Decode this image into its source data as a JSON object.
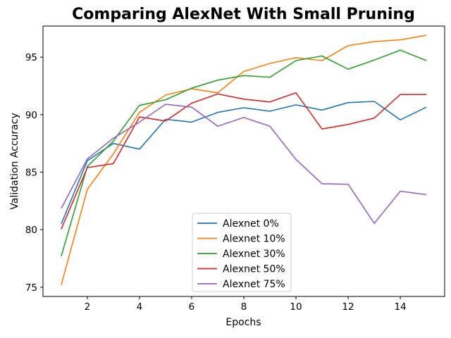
{
  "chart_data": {
    "type": "line",
    "title": "Comparing AlexNet With Small Pruning",
    "xlabel": "Epochs",
    "ylabel": "Validation Accuracy",
    "xlim": [
      0.3,
      15.7
    ],
    "ylim": [
      74.2,
      97.7
    ],
    "xticks": [
      2,
      4,
      6,
      8,
      10,
      12,
      14
    ],
    "yticks": [
      75,
      80,
      85,
      90,
      95
    ],
    "grid": false,
    "legend_position": "lower-center",
    "x": [
      1,
      2,
      3,
      4,
      5,
      6,
      7,
      8,
      9,
      10,
      11,
      12,
      13,
      14,
      15
    ],
    "series": [
      {
        "name": "Alexnet 0%",
        "color": "#1f77b4",
        "values": [
          80.5,
          86.0,
          87.5,
          87.0,
          89.6,
          89.35,
          90.2,
          90.6,
          90.3,
          90.85,
          90.4,
          91.05,
          91.15,
          89.55,
          90.65
        ]
      },
      {
        "name": "Alexnet 10%",
        "color": "#ff7f0e",
        "values": [
          75.2,
          83.5,
          86.6,
          90.2,
          91.7,
          92.25,
          91.9,
          93.75,
          94.45,
          94.95,
          94.7,
          96.0,
          96.35,
          96.5,
          96.9
        ]
      },
      {
        "name": "Alexnet 30%",
        "color": "#2ca02c",
        "values": [
          77.7,
          85.5,
          87.7,
          90.8,
          91.3,
          92.3,
          93.0,
          93.4,
          93.25,
          94.7,
          95.1,
          93.95,
          94.75,
          95.6,
          94.7
        ]
      },
      {
        "name": "Alexnet 50%",
        "color": "#d62728",
        "values": [
          80.05,
          85.4,
          85.75,
          89.8,
          89.45,
          91.0,
          91.8,
          91.35,
          91.1,
          91.9,
          88.75,
          89.15,
          89.7,
          91.75,
          91.75
        ]
      },
      {
        "name": "Alexnet 75%",
        "color": "#9467bd",
        "values": [
          81.85,
          86.15,
          87.95,
          89.35,
          90.9,
          90.65,
          89.0,
          89.75,
          89.0,
          86.1,
          84.0,
          83.95,
          80.55,
          83.35,
          83.05
        ]
      }
    ]
  }
}
